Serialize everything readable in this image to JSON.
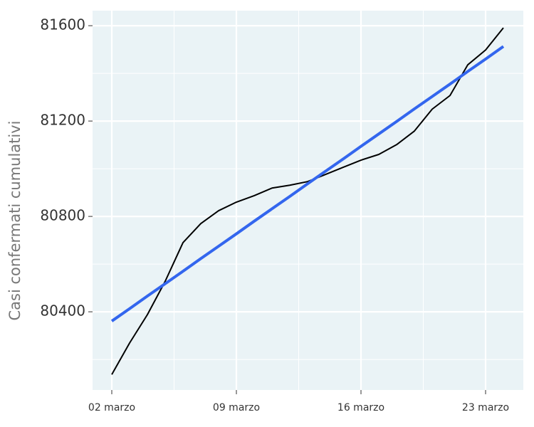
{
  "chart_data": {
    "type": "line",
    "y_label": "Casi confermati cumulativi",
    "x": [
      2,
      3,
      4,
      5,
      6,
      7,
      8,
      9,
      10,
      11,
      12,
      13,
      14,
      15,
      16,
      17,
      18,
      19,
      20,
      21,
      22,
      23,
      24
    ],
    "series": [
      {
        "color": "#000000",
        "values": [
          80137,
          80269,
          80388,
          80528,
          80690,
          80770,
          80824,
          80860,
          80887,
          80919,
          80931,
          80946,
          80976,
          81006,
          81036,
          81060,
          81101,
          81158,
          81250,
          81307,
          81436,
          81498,
          81591
        ]
      },
      {
        "color": "#3366ee",
        "values": [
          80361,
          80413,
          80466,
          80518,
          80570,
          80623,
          80675,
          80727,
          80780,
          80832,
          80884,
          80937,
          80989,
          81041,
          81094,
          81146,
          81198,
          81251,
          81303,
          81355,
          81408,
          81460,
          81513
        ]
      }
    ],
    "xlim": [
      0.92,
      25.12
    ],
    "ylim": [
      80072,
      81663
    ],
    "xticks": [
      {
        "value": 2,
        "label": "02 marzo"
      },
      {
        "value": 9,
        "label": "09 marzo"
      },
      {
        "value": 16,
        "label": "16 marzo"
      },
      {
        "value": 23,
        "label": "23 marzo"
      }
    ],
    "yticks": [
      80400,
      80800,
      81200,
      81600
    ],
    "grid": true,
    "panel_color": "#eaf3f6"
  }
}
